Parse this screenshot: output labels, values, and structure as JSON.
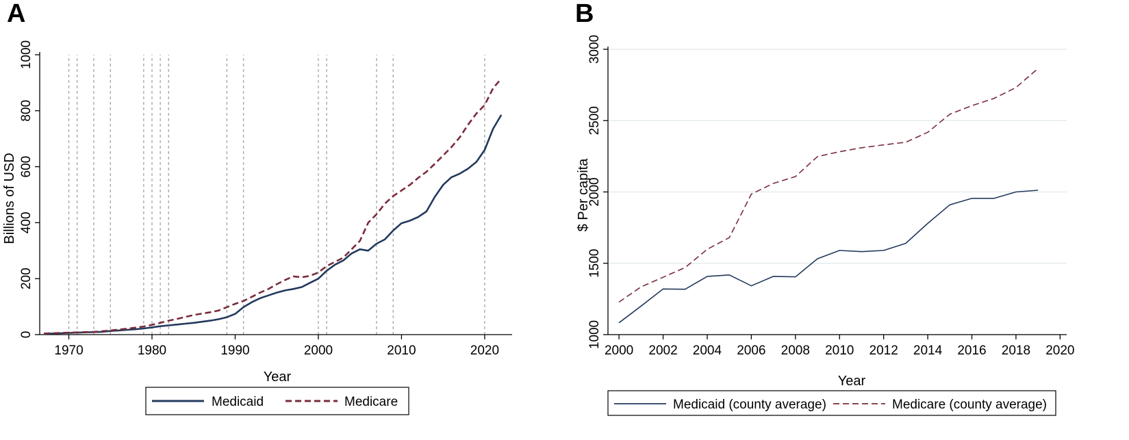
{
  "chart_data": [
    {
      "panel": "A",
      "type": "line",
      "xlabel": "Year",
      "ylabel": "Billions of USD",
      "xlim": [
        1966.5,
        2023.3
      ],
      "ylim": [
        0,
        1000
      ],
      "xticks": [
        1970,
        1980,
        1990,
        2000,
        2010,
        2020
      ],
      "yticks": [
        0,
        200,
        400,
        600,
        800,
        1000
      ],
      "vlines": [
        1970,
        1971,
        1973,
        1975,
        1979,
        1980,
        1981,
        1982,
        1989,
        1991,
        2000,
        2001,
        2007,
        2009,
        2020
      ],
      "vline_color": "#a8a8a8",
      "grid": false,
      "legend_position": "bottom",
      "series": [
        {
          "name": "Medicaid",
          "color": "#23395d",
          "style": "solid",
          "x": [
            1967,
            1968,
            1969,
            1970,
            1971,
            1972,
            1973,
            1974,
            1975,
            1976,
            1977,
            1978,
            1979,
            1980,
            1981,
            1982,
            1983,
            1984,
            1985,
            1986,
            1987,
            1988,
            1989,
            1990,
            1991,
            1992,
            1993,
            1994,
            1995,
            1996,
            1997,
            1998,
            1999,
            2000,
            2001,
            2002,
            2003,
            2004,
            2005,
            2006,
            2007,
            2008,
            2009,
            2010,
            2011,
            2012,
            2013,
            2014,
            2015,
            2016,
            2017,
            2018,
            2019,
            2020,
            2021,
            2022
          ],
          "values": [
            3,
            4,
            5,
            6,
            7,
            8,
            9,
            10,
            13,
            15,
            17,
            19,
            22,
            26,
            30,
            33,
            36,
            39,
            42,
            46,
            50,
            55,
            62,
            74,
            98,
            116,
            130,
            140,
            150,
            158,
            163,
            170,
            185,
            200,
            228,
            250,
            265,
            290,
            305,
            300,
            325,
            340,
            372,
            398,
            407,
            420,
            440,
            492,
            535,
            562,
            575,
            593,
            617,
            660,
            735,
            785
          ]
        },
        {
          "name": "Medicare",
          "color": "#7a2b3a",
          "style": "dashed",
          "x": [
            1967,
            1968,
            1969,
            1970,
            1971,
            1972,
            1973,
            1974,
            1975,
            1976,
            1977,
            1978,
            1979,
            1980,
            1981,
            1982,
            1983,
            1984,
            1985,
            1986,
            1987,
            1988,
            1989,
            1990,
            1991,
            1992,
            1993,
            1994,
            1995,
            1996,
            1997,
            1998,
            1999,
            2000,
            2001,
            2002,
            2003,
            2004,
            2005,
            2006,
            2007,
            2008,
            2009,
            2010,
            2011,
            2012,
            2013,
            2014,
            2015,
            2016,
            2017,
            2018,
            2019,
            2020,
            2021,
            2022
          ],
          "values": [
            4,
            5,
            6,
            7,
            8,
            9,
            10,
            12,
            15,
            18,
            21,
            25,
            29,
            35,
            42,
            50,
            56,
            63,
            70,
            75,
            80,
            86,
            98,
            110,
            120,
            135,
            150,
            163,
            180,
            195,
            208,
            205,
            210,
            222,
            245,
            260,
            275,
            305,
            335,
            400,
            430,
            468,
            495,
            515,
            535,
            560,
            582,
            610,
            640,
            670,
            705,
            750,
            790,
            820,
            880,
            915
          ]
        }
      ]
    },
    {
      "panel": "B",
      "type": "line",
      "xlabel": "Year",
      "ylabel": "$ Per capita",
      "xlim": [
        1999.5,
        2020.3
      ],
      "ylim": [
        1000,
        3000
      ],
      "xticks": [
        2000,
        2002,
        2004,
        2006,
        2008,
        2010,
        2012,
        2014,
        2016,
        2018,
        2020
      ],
      "yticks": [
        1000,
        1500,
        2000,
        2500,
        3000
      ],
      "grid": true,
      "grid_color": "#e5ecef",
      "legend_position": "bottom",
      "series": [
        {
          "name": "Medicaid (county average)",
          "color": "#23395d",
          "style": "solid",
          "x": [
            2000,
            2001,
            2002,
            2003,
            2004,
            2005,
            2006,
            2007,
            2008,
            2009,
            2010,
            2011,
            2012,
            2013,
            2014,
            2015,
            2016,
            2017,
            2018,
            2019
          ],
          "values": [
            1083,
            1200,
            1320,
            1318,
            1408,
            1418,
            1342,
            1408,
            1405,
            1532,
            1590,
            1582,
            1590,
            1640,
            1780,
            1910,
            1955,
            1955,
            2000,
            2012
          ]
        },
        {
          "name": "Medicare (county average)",
          "color": "#7a2b3a",
          "style": "dashed",
          "x": [
            2000,
            2001,
            2002,
            2003,
            2004,
            2005,
            2006,
            2007,
            2008,
            2009,
            2010,
            2011,
            2012,
            2013,
            2014,
            2015,
            2016,
            2017,
            2018,
            2019
          ],
          "values": [
            1228,
            1335,
            1402,
            1470,
            1598,
            1680,
            1985,
            2060,
            2108,
            2248,
            2282,
            2310,
            2330,
            2348,
            2418,
            2545,
            2605,
            2655,
            2732,
            2865
          ]
        }
      ]
    }
  ]
}
